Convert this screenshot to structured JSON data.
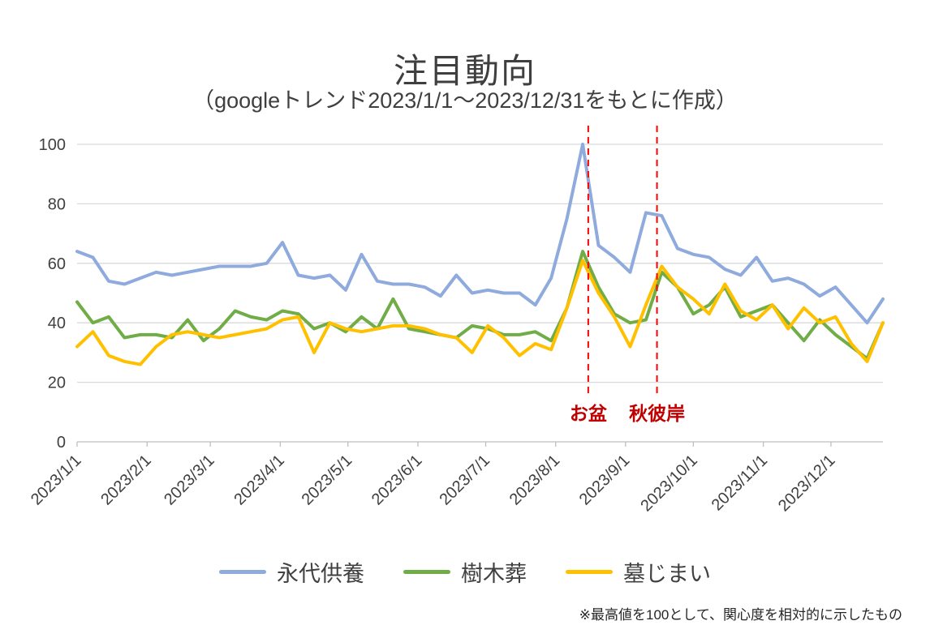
{
  "header": {
    "title": "注目動向",
    "subtitle": "（googleトレンド2023/1/1～2023/12/31をもとに作成）"
  },
  "footnote": "※最高値を100として、関心度を相対的に示したもの",
  "chart_data": {
    "type": "line",
    "title": "注目動向",
    "subtitle": "（googleトレンド2023/1/1～2023/12/31をもとに作成）",
    "x_unit": "week (2023, 52 weekly points)",
    "xlim_weeks": [
      0,
      51
    ],
    "ylim": [
      0,
      100
    ],
    "y_ticks": [
      0,
      20,
      40,
      60,
      80,
      100
    ],
    "grid": "horizontal",
    "legend_position": "bottom",
    "grid_color": "#d9d9d9",
    "axis_color": "#bfbfbf",
    "tick_label_color": "#404040",
    "x_ticks": [
      {
        "label": "2023/1/1",
        "week": 0
      },
      {
        "label": "2023/2/1",
        "week": 4.43
      },
      {
        "label": "2023/3/1",
        "week": 8.43
      },
      {
        "label": "2023/4/1",
        "week": 12.86
      },
      {
        "label": "2023/5/1",
        "week": 17.14
      },
      {
        "label": "2023/6/1",
        "week": 21.57
      },
      {
        "label": "2023/7/1",
        "week": 25.86
      },
      {
        "label": "2023/8/1",
        "week": 30.29
      },
      {
        "label": "2023/9/1",
        "week": 34.71
      },
      {
        "label": "2023/10/1",
        "week": 39
      },
      {
        "label": "2023/11/1",
        "week": 43.43
      },
      {
        "label": "2023/12/1",
        "week": 47.71
      }
    ],
    "series": [
      {
        "name": "永代供養",
        "color": "#8faadc",
        "values": [
          64,
          62,
          54,
          53,
          55,
          57,
          56,
          57,
          58,
          59,
          59,
          59,
          60,
          67,
          56,
          55,
          56,
          51,
          63,
          54,
          53,
          53,
          52,
          49,
          56,
          50,
          51,
          50,
          50,
          46,
          55,
          75,
          100,
          66,
          62,
          57,
          77,
          76,
          65,
          63,
          62,
          58,
          56,
          62,
          54,
          55,
          53,
          49,
          52,
          46,
          40,
          48
        ]
      },
      {
        "name": "樹木葬",
        "color": "#70ad47",
        "values": [
          47,
          40,
          42,
          35,
          36,
          36,
          35,
          41,
          34,
          38,
          44,
          42,
          41,
          44,
          43,
          38,
          40,
          37,
          42,
          38,
          48,
          38,
          37,
          36,
          35,
          39,
          38,
          36,
          36,
          37,
          34,
          45,
          64,
          52,
          43,
          40,
          41,
          57,
          52,
          43,
          46,
          52,
          42,
          44,
          46,
          40,
          34,
          41,
          36,
          32,
          28,
          40
        ]
      },
      {
        "name": "墓じまい",
        "color": "#ffc000",
        "values": [
          32,
          37,
          29,
          27,
          26,
          32,
          36,
          37,
          36,
          35,
          36,
          37,
          38,
          41,
          42,
          30,
          40,
          38,
          37,
          38,
          39,
          39,
          38,
          36,
          35,
          30,
          39,
          35,
          29,
          33,
          31,
          45,
          61,
          50,
          42,
          32,
          46,
          59,
          52,
          48,
          43,
          53,
          44,
          41,
          46,
          38,
          45,
          40,
          42,
          33,
          27,
          40
        ]
      }
    ],
    "annotations": [
      {
        "label": "お盆",
        "week": 32.35,
        "line_color": "#ff0000",
        "text_color": "#c00000"
      },
      {
        "label": "秋彼岸",
        "week": 36.7,
        "line_color": "#ff0000",
        "text_color": "#c00000"
      }
    ]
  }
}
